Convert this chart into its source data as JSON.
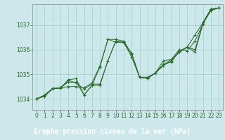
{
  "background_color": "#cce8ea",
  "plot_bg_color": "#cce8ea",
  "label_bar_color": "#2d6a2d",
  "line_color": "#2d6a2d",
  "grid_color": "#aacccc",
  "xlabel": "Graphe pression niveau de la mer (hPa)",
  "xlabel_fontsize": 7.0,
  "tick_fontsize": 5.5,
  "xlim": [
    -0.5,
    23.5
  ],
  "ylim": [
    1033.55,
    1037.85
  ],
  "yticks": [
    1034,
    1035,
    1036,
    1037
  ],
  "xticks": [
    0,
    1,
    2,
    3,
    4,
    5,
    6,
    7,
    8,
    9,
    10,
    11,
    12,
    13,
    14,
    15,
    16,
    17,
    18,
    19,
    20,
    21,
    22,
    23
  ],
  "series": [
    [
      1034.0,
      1034.1,
      1034.4,
      1034.45,
      1034.75,
      1034.65,
      1034.4,
      1034.6,
      1034.6,
      1035.55,
      1036.35,
      1036.3,
      1035.85,
      1034.88,
      1034.88,
      1035.05,
      1035.35,
      1035.55,
      1035.9,
      1036.1,
      1036.6,
      1037.1,
      1037.65,
      1037.7
    ],
    [
      1034.0,
      1034.12,
      1034.42,
      1034.42,
      1034.78,
      1034.82,
      1034.16,
      1034.55,
      1034.55,
      1035.55,
      1036.35,
      1036.28,
      1035.83,
      1034.88,
      1034.83,
      1035.05,
      1035.4,
      1035.6,
      1035.9,
      1036.1,
      1035.9,
      1037.05,
      1037.6,
      1037.7
    ],
    [
      1034.0,
      1034.15,
      1034.42,
      1034.45,
      1034.68,
      1034.68,
      1034.16,
      1034.55,
      1035.3,
      1036.42,
      1036.42,
      1036.35,
      1035.83,
      1034.88,
      1034.83,
      1035.05,
      1035.55,
      1035.6,
      1036.0,
      1035.95,
      1036.35,
      1037.05,
      1037.6,
      1037.7
    ],
    [
      1034.0,
      1034.15,
      1034.42,
      1034.45,
      1034.5,
      1034.5,
      1034.45,
      1034.65,
      1035.35,
      1036.42,
      1036.3,
      1036.3,
      1035.7,
      1034.88,
      1034.83,
      1035.05,
      1035.4,
      1035.5,
      1035.95,
      1036.1,
      1036.0,
      1037.1,
      1037.65,
      1037.7
    ]
  ]
}
